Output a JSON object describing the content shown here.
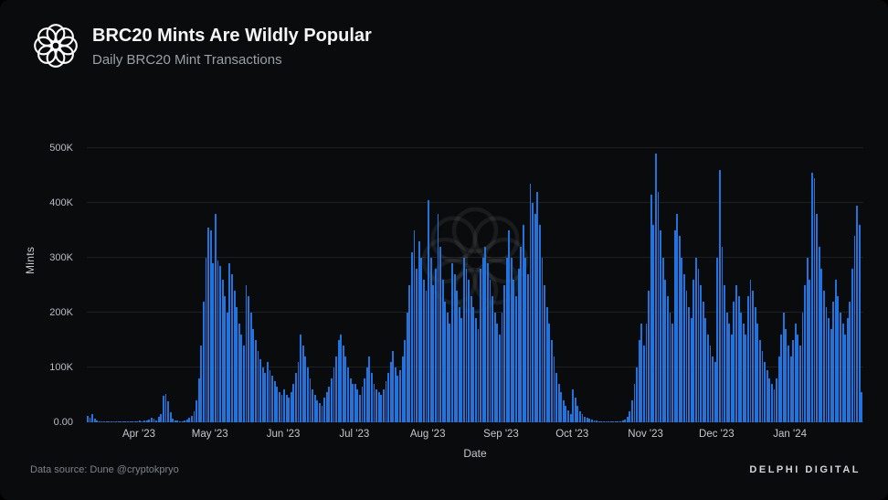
{
  "header": {
    "title": "BRC20 Mints Are Wildly Popular",
    "subtitle": "Daily BRC20 Mint Transactions"
  },
  "chart_data": {
    "type": "bar",
    "title": "BRC20 Mints Are Wildly Popular",
    "subtitle": "Daily BRC20 Mint Transactions",
    "xlabel": "Date",
    "ylabel": "Mints",
    "ylim": [
      0,
      500
    ],
    "unit": "thousands of mints (K)",
    "frequency": "daily",
    "grid": true,
    "bar_color": "#2273db",
    "ytick_labels": [
      "0.00",
      "100K",
      "200K",
      "300K",
      "400K",
      "500K"
    ],
    "xtick_labels": [
      "Apr '23",
      "May '23",
      "Jun '23",
      "Jul '23",
      "Aug '23",
      "Sep '23",
      "Oct '23",
      "Nov '23",
      "Dec '23",
      "Jan '24"
    ],
    "note": "Daily values in thousands, estimated from chart pixels; first array is the unlabeled partial month before the Apr '23 tick.",
    "months": [
      {
        "label": "",
        "values": [
          12,
          8,
          15,
          6,
          3,
          2,
          1,
          1,
          1,
          2,
          1,
          1,
          1,
          1,
          2,
          1,
          1,
          1,
          1,
          1,
          1,
          1
        ]
      },
      {
        "label": "Apr '23",
        "values": [
          3,
          2,
          4,
          3,
          5,
          8,
          6,
          4,
          10,
          15,
          48,
          52,
          38,
          18,
          6,
          4,
          3,
          2,
          2,
          3,
          5,
          8,
          12,
          20,
          40,
          80,
          140,
          220,
          300,
          355
        ]
      },
      {
        "label": "May '23",
        "values": [
          350,
          290,
          380,
          295,
          285,
          260,
          230,
          200,
          290,
          270,
          240,
          210,
          180,
          160,
          140,
          250,
          230,
          200,
          170,
          150,
          130,
          115,
          100,
          90,
          110,
          95,
          85,
          75,
          65,
          55,
          50
        ]
      },
      {
        "label": "Jun '23",
        "values": [
          60,
          50,
          45,
          55,
          70,
          90,
          110,
          160,
          140,
          120,
          100,
          80,
          60,
          50,
          40,
          35,
          30,
          45,
          55,
          65,
          80,
          100,
          120,
          150,
          160,
          140,
          120,
          100,
          80,
          70
        ]
      },
      {
        "label": "Jul '23",
        "values": [
          70,
          60,
          50,
          65,
          80,
          100,
          120,
          90,
          70,
          60,
          55,
          50,
          60,
          75,
          90,
          110,
          130,
          100,
          85,
          95,
          120,
          150,
          200,
          250,
          310,
          350,
          280,
          330,
          300,
          260,
          240
        ]
      },
      {
        "label": "Aug '23",
        "values": [
          405,
          300,
          250,
          280,
          380,
          320,
          260,
          220,
          200,
          180,
          290,
          270,
          240,
          210,
          190,
          300,
          280,
          260,
          230,
          210,
          190,
          170,
          280,
          300,
          320,
          290,
          260,
          230,
          200,
          180,
          160
        ]
      },
      {
        "label": "Sep '23",
        "values": [
          200,
          250,
          300,
          350,
          300,
          260,
          230,
          280,
          320,
          360,
          300,
          270,
          435,
          400,
          380,
          420,
          360,
          300,
          250,
          210,
          180,
          150,
          120,
          90,
          70,
          55,
          40,
          30,
          22,
          15
        ]
      },
      {
        "label": "Oct '23",
        "values": [
          60,
          45,
          30,
          20,
          15,
          10,
          8,
          6,
          5,
          4,
          3,
          2,
          2,
          1,
          1,
          1,
          1,
          1,
          1,
          1,
          2,
          3,
          5,
          10,
          20,
          40,
          70,
          100,
          150,
          180,
          140
        ]
      },
      {
        "label": "Nov '23",
        "values": [
          180,
          240,
          415,
          360,
          490,
          420,
          350,
          300,
          260,
          230,
          200,
          180,
          350,
          380,
          340,
          300,
          270,
          240,
          210,
          190,
          260,
          300,
          280,
          250,
          220,
          190,
          160,
          140,
          120,
          110
        ]
      },
      {
        "label": "Dec '23",
        "values": [
          300,
          460,
          320,
          250,
          200,
          180,
          160,
          220,
          250,
          230,
          200,
          180,
          160,
          230,
          260,
          240,
          210,
          180,
          150,
          130,
          110,
          95,
          80,
          70,
          60,
          80,
          120,
          160,
          200,
          170,
          140
        ]
      },
      {
        "label": "Jan '24",
        "values": [
          120,
          150,
          180,
          160,
          140,
          200,
          250,
          300,
          260,
          455,
          445,
          380,
          320,
          280,
          240,
          210,
          190,
          170,
          220,
          260,
          230,
          200,
          180,
          160,
          190,
          220,
          280,
          340,
          395,
          360,
          55
        ]
      }
    ]
  },
  "footer": {
    "source": "Data source: Dune @cryptokpryo",
    "brand": "DELPHI DIGITAL"
  }
}
